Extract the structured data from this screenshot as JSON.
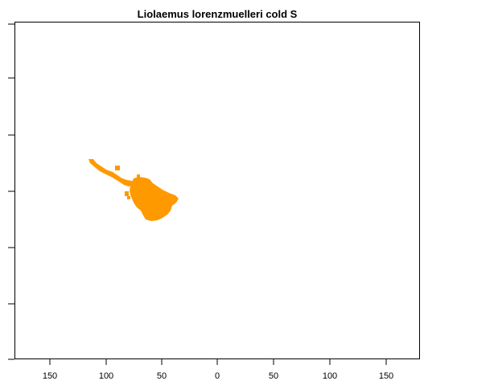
{
  "title": "Liolaemus lorenzmuelleri cold S",
  "x_axis": {
    "ticks": [
      "150",
      "100",
      "50",
      "0",
      "50",
      "100",
      "150"
    ]
  },
  "colors": {
    "range_fill": "#ff9900",
    "frame": "#000000",
    "background": "#ffffff"
  }
}
